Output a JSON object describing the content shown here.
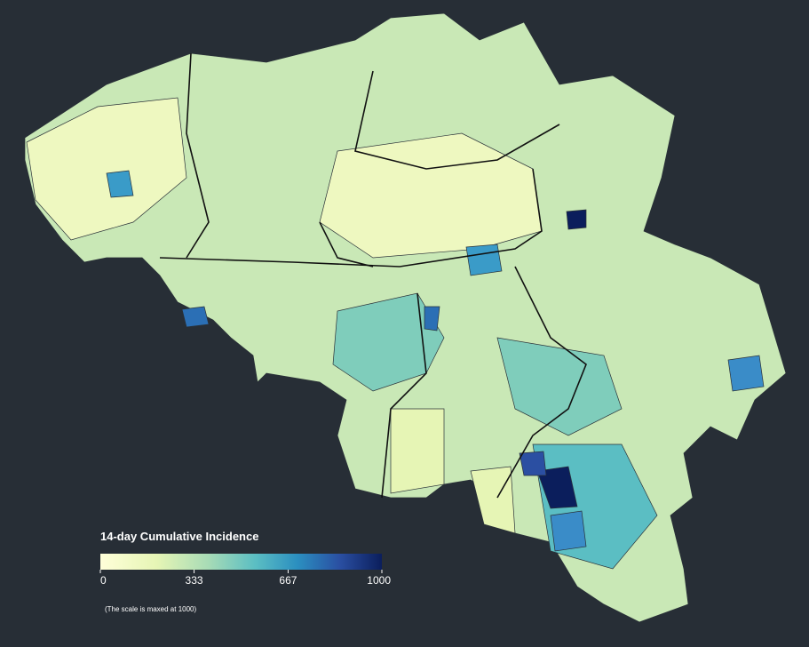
{
  "legend": {
    "title": "14-day Cumulative Incidence",
    "range": [
      0,
      1000
    ],
    "ticks": [
      0,
      333,
      667,
      1000
    ]
  },
  "note": "(The scale is maxed at 1000)"
}
